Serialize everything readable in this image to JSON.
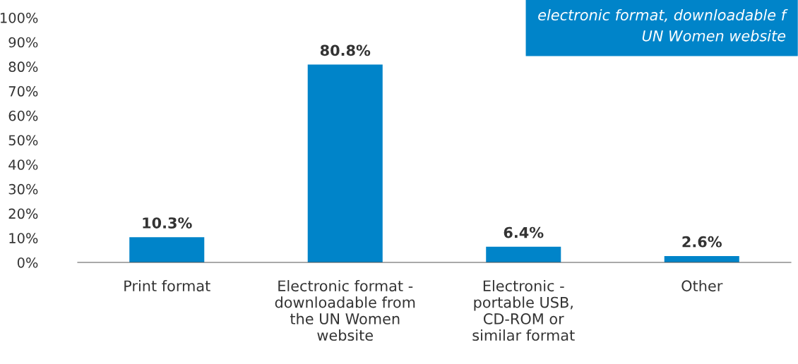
{
  "chart_data": {
    "type": "bar",
    "categories": [
      "Print format",
      "Electronic format -\ndownloadable from\nthe UN Women\nwebsite",
      "Electronic -\nportable USB,\nCD-ROM or\nsimilar format",
      "Other"
    ],
    "values": [
      10.3,
      80.8,
      6.4,
      2.6
    ],
    "value_labels": [
      "10.3%",
      "80.8%",
      "6.4%",
      "2.6%"
    ],
    "color": "#0084c9",
    "ylim": [
      0,
      100
    ],
    "yticks": [
      {
        "value": 0,
        "label": "0%"
      },
      {
        "value": 10,
        "label": "10%"
      },
      {
        "value": 20,
        "label": "20%"
      },
      {
        "value": 30,
        "label": "30%"
      },
      {
        "value": 40,
        "label": "40%"
      },
      {
        "value": 50,
        "label": "50%"
      },
      {
        "value": 60,
        "label": "60%"
      },
      {
        "value": 70,
        "label": "70%"
      },
      {
        "value": 80,
        "label": "80%"
      },
      {
        "value": 90,
        "label": "90%"
      },
      {
        "value": 100,
        "label": "100%"
      }
    ],
    "annotations": [
      "electronic format, downloadable f\nUN Women website"
    ],
    "grid": false
  }
}
